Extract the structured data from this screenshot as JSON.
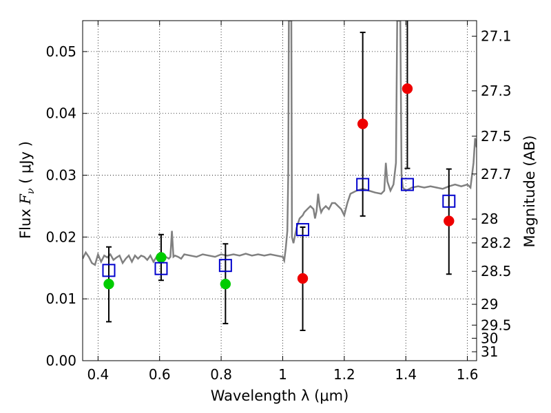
{
  "chart_data": {
    "type": "scatter",
    "xlabel": "Wavelength  λ (μm)",
    "ylabel": "Flux  F_ν  ( μJy )",
    "ylabel_parts": {
      "prefix": "Flux  ",
      "symbol": "F",
      "subscript": "ν",
      "suffix": "  ( μJy )"
    },
    "y2label": "Magnitude (AB)",
    "xlim": [
      0.35,
      1.63
    ],
    "ylim": [
      0.0,
      0.055
    ],
    "grid": true,
    "x_ticks": [
      0.4,
      0.6,
      0.8,
      1.0,
      1.2,
      1.4,
      1.6
    ],
    "x_tick_labels": [
      "0.4",
      "0.6",
      "0.8",
      "1",
      "1.2",
      "1.4",
      "1.6"
    ],
    "y_ticks": [
      0.0,
      0.01,
      0.02,
      0.03,
      0.04,
      0.05
    ],
    "y_tick_labels": [
      "0.00",
      "0.01",
      "0.02",
      "0.03",
      "0.04",
      "0.05"
    ],
    "y2_tick_labels": [
      "27.1",
      "27.3",
      "27.5",
      "27.7",
      "28",
      "28.2",
      "28.5",
      "29",
      "29.5",
      "30",
      "31"
    ],
    "y2_tick_values": [
      27.1,
      27.3,
      27.5,
      27.7,
      28.0,
      28.2,
      28.5,
      29.0,
      29.5,
      30.0,
      31.0
    ],
    "colors": {
      "spectrum": "#808080",
      "green": "#00cc00",
      "red": "#ee0000",
      "model": "#0000cc",
      "errorbar": "#000000"
    },
    "series": [
      {
        "marker": "line",
        "color": "#808080",
        "points": [
          [
            0.35,
            0.0165
          ],
          [
            0.36,
            0.0175
          ],
          [
            0.37,
            0.0168
          ],
          [
            0.38,
            0.0158
          ],
          [
            0.39,
            0.0155
          ],
          [
            0.4,
            0.0172
          ],
          [
            0.41,
            0.016
          ],
          [
            0.42,
            0.017
          ],
          [
            0.43,
            0.0167
          ],
          [
            0.44,
            0.0172
          ],
          [
            0.45,
            0.0163
          ],
          [
            0.46,
            0.0167
          ],
          [
            0.47,
            0.017
          ],
          [
            0.48,
            0.0158
          ],
          [
            0.49,
            0.0165
          ],
          [
            0.5,
            0.017
          ],
          [
            0.51,
            0.016
          ],
          [
            0.52,
            0.017
          ],
          [
            0.53,
            0.0165
          ],
          [
            0.54,
            0.017
          ],
          [
            0.55,
            0.0168
          ],
          [
            0.56,
            0.0163
          ],
          [
            0.57,
            0.017
          ],
          [
            0.58,
            0.016
          ],
          [
            0.59,
            0.0168
          ],
          [
            0.6,
            0.0165
          ],
          [
            0.61,
            0.017
          ],
          [
            0.62,
            0.0168
          ],
          [
            0.63,
            0.0165
          ],
          [
            0.635,
            0.0168
          ],
          [
            0.64,
            0.021
          ],
          [
            0.645,
            0.0168
          ],
          [
            0.65,
            0.017
          ],
          [
            0.66,
            0.0168
          ],
          [
            0.67,
            0.0165
          ],
          [
            0.68,
            0.0172
          ],
          [
            0.7,
            0.017
          ],
          [
            0.72,
            0.0168
          ],
          [
            0.74,
            0.0172
          ],
          [
            0.76,
            0.017
          ],
          [
            0.78,
            0.0168
          ],
          [
            0.8,
            0.0172
          ],
          [
            0.82,
            0.017
          ],
          [
            0.84,
            0.0172
          ],
          [
            0.86,
            0.017
          ],
          [
            0.88,
            0.0173
          ],
          [
            0.9,
            0.017
          ],
          [
            0.92,
            0.0172
          ],
          [
            0.94,
            0.017
          ],
          [
            0.96,
            0.0172
          ],
          [
            0.98,
            0.017
          ],
          [
            1.0,
            0.0168
          ],
          [
            1.005,
            0.0162
          ],
          [
            1.01,
            0.0182
          ],
          [
            1.015,
            0.021
          ],
          [
            1.018,
            0.03
          ],
          [
            1.02,
            0.055
          ],
          [
            1.028,
            0.055
          ],
          [
            1.03,
            0.02
          ],
          [
            1.035,
            0.019
          ],
          [
            1.045,
            0.0215
          ],
          [
            1.055,
            0.023
          ],
          [
            1.065,
            0.0235
          ],
          [
            1.07,
            0.024
          ],
          [
            1.08,
            0.0245
          ],
          [
            1.09,
            0.025
          ],
          [
            1.1,
            0.0245
          ],
          [
            1.105,
            0.023
          ],
          [
            1.11,
            0.0242
          ],
          [
            1.115,
            0.027
          ],
          [
            1.12,
            0.025
          ],
          [
            1.125,
            0.024
          ],
          [
            1.13,
            0.0245
          ],
          [
            1.14,
            0.025
          ],
          [
            1.15,
            0.0245
          ],
          [
            1.16,
            0.0255
          ],
          [
            1.17,
            0.0255
          ],
          [
            1.18,
            0.025
          ],
          [
            1.19,
            0.0245
          ],
          [
            1.2,
            0.0235
          ],
          [
            1.21,
            0.0255
          ],
          [
            1.22,
            0.027
          ],
          [
            1.24,
            0.0275
          ],
          [
            1.26,
            0.0278
          ],
          [
            1.28,
            0.0275
          ],
          [
            1.3,
            0.0272
          ],
          [
            1.32,
            0.027
          ],
          [
            1.33,
            0.0275
          ],
          [
            1.335,
            0.032
          ],
          [
            1.34,
            0.029
          ],
          [
            1.35,
            0.0275
          ],
          [
            1.36,
            0.0285
          ],
          [
            1.368,
            0.032
          ],
          [
            1.372,
            0.055
          ],
          [
            1.382,
            0.055
          ],
          [
            1.386,
            0.03
          ],
          [
            1.39,
            0.028
          ],
          [
            1.4,
            0.0275
          ],
          [
            1.42,
            0.028
          ],
          [
            1.44,
            0.0282
          ],
          [
            1.46,
            0.028
          ],
          [
            1.48,
            0.0282
          ],
          [
            1.5,
            0.028
          ],
          [
            1.52,
            0.0278
          ],
          [
            1.54,
            0.0282
          ],
          [
            1.56,
            0.0285
          ],
          [
            1.58,
            0.0282
          ],
          [
            1.6,
            0.0285
          ],
          [
            1.61,
            0.028
          ],
          [
            1.62,
            0.032
          ],
          [
            1.625,
            0.036
          ],
          [
            1.63,
            0.0345
          ]
        ]
      },
      {
        "marker": "filled-circle",
        "color": "#00cc00",
        "points": [
          {
            "x": 0.435,
            "y": 0.0124
          },
          {
            "x": 0.605,
            "y": 0.0167
          },
          {
            "x": 0.814,
            "y": 0.0124
          }
        ]
      },
      {
        "marker": "filled-circle",
        "color": "#ee0000",
        "points": [
          {
            "x": 1.065,
            "y": 0.0133
          },
          {
            "x": 1.26,
            "y": 0.0383
          },
          {
            "x": 1.405,
            "y": 0.044
          },
          {
            "x": 1.54,
            "y": 0.0226
          }
        ]
      },
      {
        "marker": "open-square",
        "color": "#0000cc",
        "points": [
          {
            "x": 0.435,
            "y": 0.0146
          },
          {
            "x": 0.605,
            "y": 0.0149
          },
          {
            "x": 0.814,
            "y": 0.0154
          },
          {
            "x": 1.065,
            "y": 0.0212
          },
          {
            "x": 1.26,
            "y": 0.0285
          },
          {
            "x": 1.405,
            "y": 0.0285
          },
          {
            "x": 1.54,
            "y": 0.0258
          }
        ]
      },
      {
        "marker": "errorbar",
        "color": "#000000",
        "points": [
          {
            "x": 0.435,
            "ylo": 0.0063,
            "yhi": 0.0184
          },
          {
            "x": 0.605,
            "ylo": 0.013,
            "yhi": 0.0204
          },
          {
            "x": 0.814,
            "ylo": 0.006,
            "yhi": 0.0189
          },
          {
            "x": 1.065,
            "ylo": 0.0049,
            "yhi": 0.0216
          },
          {
            "x": 1.26,
            "ylo": 0.0234,
            "yhi": 0.0531
          },
          {
            "x": 1.405,
            "ylo": 0.0311,
            "yhi": 0.055
          },
          {
            "x": 1.54,
            "ylo": 0.014,
            "yhi": 0.031
          }
        ]
      }
    ]
  }
}
